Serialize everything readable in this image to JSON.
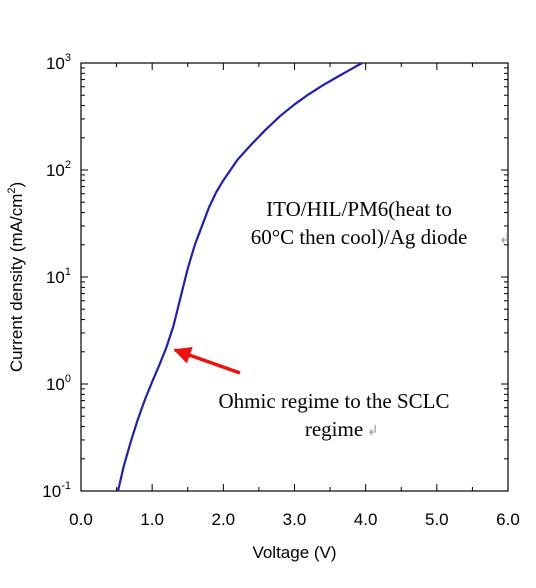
{
  "chart_data": {
    "type": "line",
    "xlabel": "Voltage (V)",
    "ylabel": "Current density (mA/cm",
    "ylabel_sup": "2",
    "ylabel_close": ")",
    "xlim": [
      0,
      6
    ],
    "ylim": [
      0.1,
      1000
    ],
    "yscale": "log",
    "grid": false,
    "xticks": [
      "0.0",
      "1.0",
      "2.0",
      "3.0",
      "4.0",
      "5.0",
      "6.0"
    ],
    "yticks": [
      {
        "base": "10",
        "exp": "-1"
      },
      {
        "base": "10",
        "exp": "0"
      },
      {
        "base": "10",
        "exp": "1"
      },
      {
        "base": "10",
        "exp": "2"
      },
      {
        "base": "10",
        "exp": "3"
      }
    ],
    "series": [
      {
        "color": "#1f1fb4",
        "x": [
          0.52,
          0.6,
          0.7,
          0.8,
          0.9,
          1.0,
          1.1,
          1.2,
          1.3,
          1.4,
          1.5,
          1.6,
          1.7,
          1.8,
          1.9,
          2.0,
          2.2,
          2.4,
          2.6,
          2.8,
          3.0,
          3.2,
          3.4,
          3.6,
          3.8,
          3.95
        ],
        "y": [
          0.1,
          0.17,
          0.29,
          0.47,
          0.72,
          1.05,
          1.5,
          2.2,
          3.5,
          6.5,
          12,
          20,
          30,
          45,
          62,
          80,
          125,
          175,
          240,
          320,
          410,
          510,
          620,
          740,
          880,
          1000
        ]
      }
    ],
    "annotations": [
      {
        "lines": [
          "ITO/HIL/PM6(heat to",
          "60°C then cool)/Ag diode"
        ],
        "mark": "↲"
      },
      {
        "lines": [
          "Ohmic regime to the SCLC",
          "regime"
        ],
        "mark": "↲",
        "arrow_color": "#ee1111"
      }
    ]
  }
}
